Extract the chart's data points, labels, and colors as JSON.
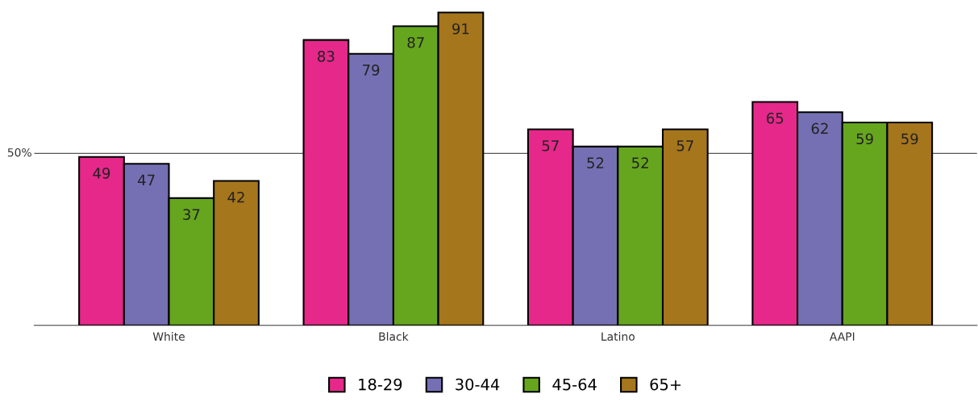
{
  "chart_data": {
    "type": "bar",
    "categories": [
      "White",
      "Black",
      "Latino",
      "AAPI"
    ],
    "series": [
      {
        "name": "18-29",
        "color": "#e6288a",
        "values": [
          49,
          83,
          57,
          65
        ]
      },
      {
        "name": "30-44",
        "color": "#7570b3",
        "values": [
          47,
          79,
          52,
          62
        ]
      },
      {
        "name": "45-64",
        "color": "#66a61e",
        "values": [
          37,
          87,
          52,
          59
        ]
      },
      {
        "name": "65+",
        "color": "#a6761d",
        "values": [
          42,
          91,
          57,
          59
        ]
      }
    ],
    "ref_lines": [
      {
        "axis": "y",
        "value": 50,
        "label": "50%",
        "color": "#555555"
      }
    ],
    "data_labels": true,
    "legend": "bottom"
  }
}
